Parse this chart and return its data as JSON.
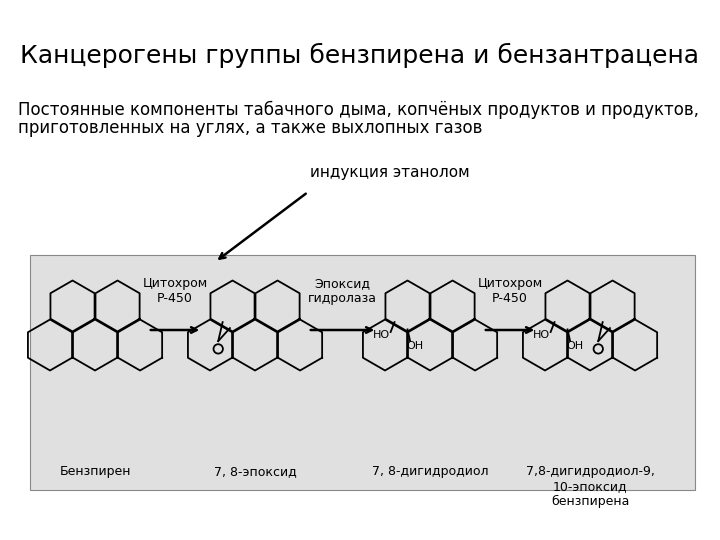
{
  "title": "Канцерогены группы бензпирена и бензантрацена",
  "subtitle_line1": "Постоянные компоненты табачного дыма, копчёных продуктов и продуктов,",
  "subtitle_line2": "приготовленных на углях, а также выхлопных газов",
  "induction_label": "индукция этанолом",
  "bg_color": "#ffffff",
  "diagram_bg": "#e0e0e0",
  "title_fontsize": 18,
  "subtitle_fontsize": 12,
  "annotation_fontsize": 11,
  "compounds": [
    "Бензпирен",
    "7, 8-эпоксид",
    "7, 8-дигидродиол",
    "7,8-дигидродиол-9,\n10-эпоксид\nбензпирена"
  ],
  "enzymes": [
    "Цитохром\nР-450",
    "Эпоксид\nгидролаза",
    "Цитохром\nР-450"
  ]
}
